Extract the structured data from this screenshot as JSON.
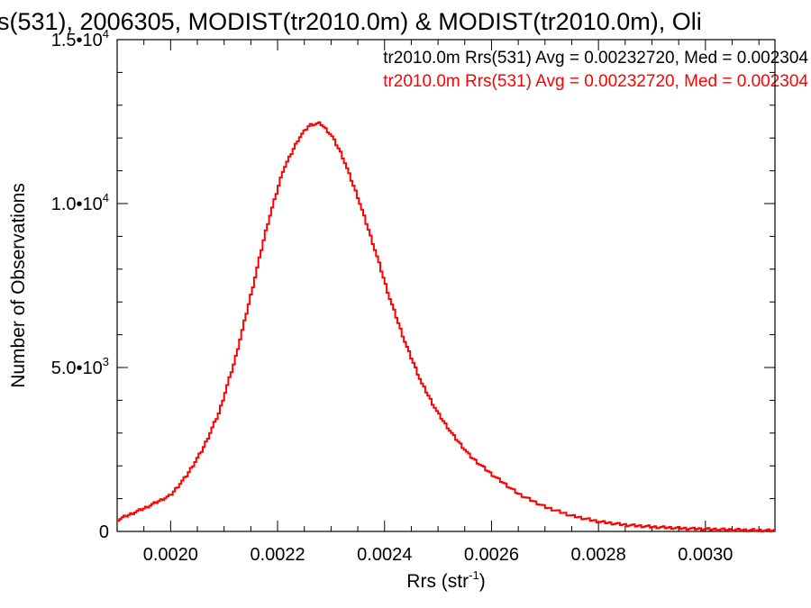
{
  "chart_data": {
    "type": "step",
    "title": "s(531), 2006305, MODIST(tr2010.0m) & MODIST(tr2010.0m), Oli",
    "xlabel": {
      "base": "Rrs (str",
      "sup": "-1",
      "close": ")"
    },
    "ylabel": "Number of Observations",
    "xlim": [
      0.0019,
      0.00313
    ],
    "ylim": [
      0,
      15000
    ],
    "xticks": [
      0.002,
      0.0022,
      0.0024,
      0.0026,
      0.0028,
      0.003
    ],
    "xtick_labels": [
      "0.0020",
      "0.0022",
      "0.0024",
      "0.0026",
      "0.0028",
      "0.0030"
    ],
    "yticks": [
      {
        "value": 0,
        "mant": "0",
        "exp": ""
      },
      {
        "value": 5000,
        "mant": "5.0•10",
        "exp": "3"
      },
      {
        "value": 10000,
        "mant": "1.0•10",
        "exp": "4"
      },
      {
        "value": 15000,
        "mant": "1.5•10",
        "exp": "4"
      }
    ],
    "legend": [
      {
        "text": "tr2010.0m Rrs(531) Avg = 0.00232720, Med = 0.002304",
        "color": "#000000"
      },
      {
        "text": "tr2010.0m Rrs(531) Avg = 0.00232720, Med = 0.002304",
        "color": "#ff0000"
      }
    ],
    "series": [
      {
        "color": "#ff0000",
        "points": [
          [
            0.0019,
            350
          ],
          [
            0.00195,
            700
          ],
          [
            0.002,
            1100
          ],
          [
            0.00203,
            1700
          ],
          [
            0.00206,
            2500
          ],
          [
            0.00209,
            3600
          ],
          [
            0.00212,
            5200
          ],
          [
            0.00215,
            7200
          ],
          [
            0.00218,
            9300
          ],
          [
            0.00221,
            11000
          ],
          [
            0.00224,
            12000
          ],
          [
            0.00226,
            12400
          ],
          [
            0.00228,
            12450
          ],
          [
            0.0023,
            12100
          ],
          [
            0.00232,
            11500
          ],
          [
            0.00235,
            10200
          ],
          [
            0.00238,
            8700
          ],
          [
            0.00241,
            7100
          ],
          [
            0.00244,
            5700
          ],
          [
            0.00247,
            4500
          ],
          [
            0.0025,
            3600
          ],
          [
            0.00253,
            2900
          ],
          [
            0.00256,
            2300
          ],
          [
            0.0026,
            1750
          ],
          [
            0.00265,
            1150
          ],
          [
            0.0027,
            750
          ],
          [
            0.00275,
            480
          ],
          [
            0.0028,
            300
          ],
          [
            0.00285,
            200
          ],
          [
            0.0029,
            140
          ],
          [
            0.00295,
            100
          ],
          [
            0.003,
            70
          ],
          [
            0.00305,
            50
          ],
          [
            0.00313,
            25
          ]
        ]
      }
    ]
  }
}
